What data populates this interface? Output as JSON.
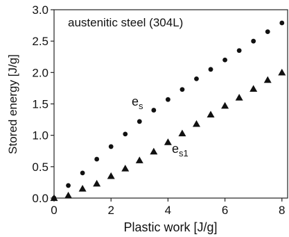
{
  "chart_data": {
    "type": "scatter",
    "title": "",
    "annotation": "austenitic steel (304L)",
    "xlabel": "Plastic work  [J/g]",
    "ylabel": "Stored energy  [J/g]",
    "xlim": [
      0,
      8.2
    ],
    "ylim": [
      0,
      3.0
    ],
    "xticks": [
      0,
      2,
      4,
      6,
      8
    ],
    "xtick_labels": [
      "0",
      "2",
      "4",
      "6",
      "8"
    ],
    "yticks": [
      0,
      0.5,
      1.0,
      1.5,
      2.0,
      2.5,
      3.0
    ],
    "ytick_labels": [
      "0.0",
      "0.5",
      "1.0",
      "1.5",
      "2.0",
      "2.5",
      "3.0"
    ],
    "grid": false,
    "series": [
      {
        "name": "es",
        "label_main": "e",
        "label_sub": "s",
        "marker": "circle",
        "x": [
          0,
          0.5,
          1.0,
          1.5,
          2.0,
          2.5,
          3.0,
          3.5,
          4.0,
          4.5,
          5.0,
          5.5,
          6.0,
          6.5,
          7.0,
          7.5,
          8.0
        ],
        "y": [
          0.0,
          0.2,
          0.4,
          0.62,
          0.82,
          1.02,
          1.22,
          1.4,
          1.57,
          1.73,
          1.9,
          2.05,
          2.2,
          2.35,
          2.5,
          2.65,
          2.79
        ]
      },
      {
        "name": "es1",
        "label_main": "e",
        "label_sub": "s1",
        "marker": "triangle",
        "x": [
          0,
          0.5,
          1.0,
          1.5,
          2.0,
          2.5,
          3.0,
          3.5,
          4.0,
          4.5,
          5.0,
          5.5,
          6.0,
          6.5,
          7.0,
          7.5,
          8.0
        ],
        "y": [
          0.0,
          0.04,
          0.15,
          0.23,
          0.35,
          0.47,
          0.6,
          0.74,
          0.89,
          1.03,
          1.18,
          1.33,
          1.47,
          1.6,
          1.74,
          1.88,
          2.0
        ]
      }
    ]
  }
}
